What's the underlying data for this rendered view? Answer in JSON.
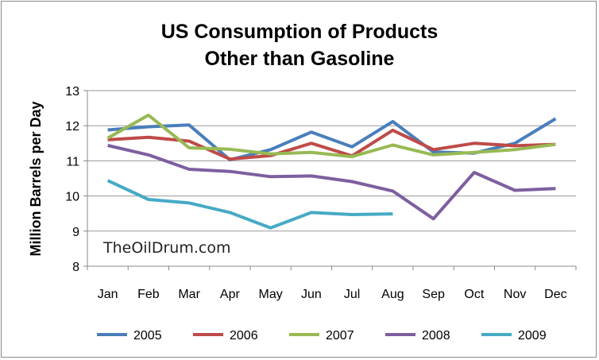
{
  "chart_data": {
    "type": "line",
    "title": "US Consumption of Products Other than Gasoline",
    "title_lines": [
      "US Consumption of Products",
      "Other than Gasoline"
    ],
    "xlabel": "",
    "ylabel": "Million Barrels per Day",
    "categories": [
      "Jan",
      "Feb",
      "Mar",
      "Apr",
      "May",
      "Jun",
      "Jul",
      "Aug",
      "Sep",
      "Oct",
      "Nov",
      "Dec"
    ],
    "ylim": [
      8,
      13
    ],
    "yticks": [
      "8",
      "9",
      "10",
      "11",
      "12",
      "13"
    ],
    "grid": "horizontal",
    "legend_position": "bottom",
    "series": [
      {
        "name": "2005",
        "color": "#4a7ebb",
        "values": [
          11.88,
          11.97,
          12.02,
          11.03,
          11.32,
          11.82,
          11.4,
          12.12,
          11.25,
          11.22,
          11.5,
          12.2
        ]
      },
      {
        "name": "2006",
        "color": "#be4b48",
        "values": [
          11.6,
          11.67,
          11.56,
          11.05,
          11.15,
          11.5,
          11.14,
          11.87,
          11.32,
          11.5,
          11.43,
          11.47
        ]
      },
      {
        "name": "2007",
        "color": "#98b954",
        "values": [
          11.65,
          12.3,
          11.37,
          11.33,
          11.2,
          11.24,
          11.12,
          11.45,
          11.17,
          11.24,
          11.32,
          11.47
        ]
      },
      {
        "name": "2008",
        "color": "#7d5fa0",
        "values": [
          11.44,
          11.17,
          10.76,
          10.7,
          10.55,
          10.57,
          10.41,
          10.14,
          9.35,
          10.67,
          10.16,
          10.21
        ]
      },
      {
        "name": "2009",
        "color": "#46aac5",
        "values": [
          10.44,
          9.9,
          9.8,
          9.53,
          9.09,
          9.53,
          9.47,
          9.49,
          null,
          null,
          null,
          null
        ]
      }
    ]
  },
  "watermark": "TheOilDrum.com"
}
